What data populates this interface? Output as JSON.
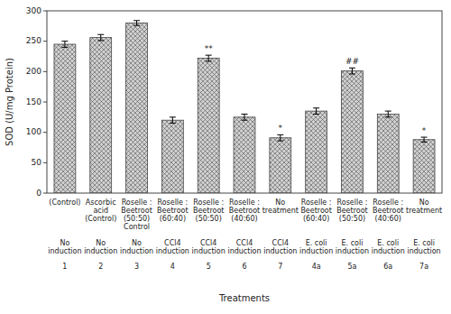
{
  "chart_data": {
    "type": "bar",
    "categories": [
      "(Control)",
      "Ascorbic\nacid\n(Control)",
      "Roselle :\nBeetroot\n(50:50)\nControl",
      "Roselle :\nBeetroot\n(60:40)",
      "Roselle :\nBeetroot\n(50:50)",
      "Roselle :\nBeetroot\n(40:60)",
      "No\ntreatment",
      "Roselle :\nBeetroot\n(60:40)",
      "Roselle :\nBeetroot\n(50:50)",
      "Roselle :\nBeetroot\n(40:60)",
      "No\ntreatment"
    ],
    "category_groups": [
      "No\ninduction",
      "No\ninduction",
      "No\ninduction",
      "CCl4\ninduction",
      "CCl4\ninduction",
      "CCl4\ninduction",
      "CCl4\ninduction",
      "E. coli\ninduction",
      "E. coli\ninduction",
      "E. coli\ninduction",
      "E. coli\ninduction"
    ],
    "category_numbers": [
      "1",
      "2",
      "3",
      "4",
      "5",
      "6",
      "7",
      "4a",
      "5a",
      "6a",
      "7a"
    ],
    "values": [
      245,
      256,
      280,
      120,
      222,
      125,
      91,
      135,
      201,
      130,
      88
    ],
    "errors": [
      5,
      5,
      4,
      5,
      5,
      5,
      5,
      5,
      5,
      5,
      4
    ],
    "annotations": [
      null,
      null,
      null,
      null,
      "**",
      null,
      "*",
      null,
      "##",
      null,
      "*"
    ],
    "xlabel": "Treatments",
    "ylabel": "SOD (U/mg Protein)",
    "ylim": [
      0,
      300
    ],
    "yticks": [
      0,
      50,
      100,
      150,
      200,
      250,
      300
    ],
    "color": "#d0d0d0",
    "grid": false
  }
}
